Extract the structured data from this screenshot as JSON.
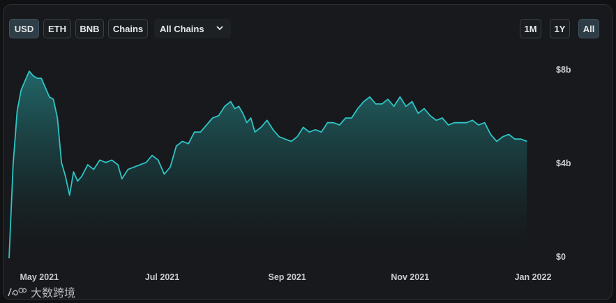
{
  "toolbar": {
    "currency_buttons": [
      {
        "label": "USD",
        "active": true
      },
      {
        "label": "ETH",
        "active": false
      },
      {
        "label": "BNB",
        "active": false
      },
      {
        "label": "Chains",
        "active": false
      }
    ],
    "chain_select": {
      "selected": "All Chains"
    },
    "range_buttons": [
      {
        "label": "1M",
        "active": false
      },
      {
        "label": "1Y",
        "active": false
      },
      {
        "label": "All",
        "active": true
      }
    ]
  },
  "colors": {
    "line": "#2ec4c4",
    "background": "#17191c",
    "accent_active": "#2e3d46"
  },
  "watermark": {
    "text": "大数跨境"
  },
  "chart_data": {
    "type": "area",
    "title": "",
    "xlabel": "",
    "ylabel": "",
    "ylim": [
      0,
      8.2
    ],
    "y_ticks": [
      {
        "value": 0,
        "label": "$0"
      },
      {
        "value": 4,
        "label": "$4b"
      },
      {
        "value": 8,
        "label": "$8b"
      }
    ],
    "x_ticks": [
      {
        "date": "2021-05-01",
        "label": "May 2021"
      },
      {
        "date": "2021-07-01",
        "label": "Jul 2021"
      },
      {
        "date": "2021-09-01",
        "label": "Sep 2021"
      },
      {
        "date": "2021-11-01",
        "label": "Nov 2021"
      },
      {
        "date": "2022-01-01",
        "label": "Jan 2022"
      }
    ],
    "x_range": [
      "2021-04-16",
      "2022-01-10"
    ],
    "series": [
      {
        "values": [
          [
            "2021-04-16",
            0.0
          ],
          [
            "2021-04-18",
            4.0
          ],
          [
            "2021-04-20",
            6.3
          ],
          [
            "2021-04-22",
            7.2
          ],
          [
            "2021-04-24",
            7.6
          ],
          [
            "2021-04-26",
            8.0
          ],
          [
            "2021-04-28",
            7.8
          ],
          [
            "2021-04-30",
            7.7
          ],
          [
            "2021-05-02",
            7.7
          ],
          [
            "2021-05-04",
            7.3
          ],
          [
            "2021-05-06",
            6.9
          ],
          [
            "2021-05-08",
            6.8
          ],
          [
            "2021-05-10",
            6.0
          ],
          [
            "2021-05-12",
            4.1
          ],
          [
            "2021-05-14",
            3.5
          ],
          [
            "2021-05-16",
            2.7
          ],
          [
            "2021-05-18",
            3.7
          ],
          [
            "2021-05-20",
            3.3
          ],
          [
            "2021-05-22",
            3.5
          ],
          [
            "2021-05-25",
            4.0
          ],
          [
            "2021-05-28",
            3.8
          ],
          [
            "2021-05-31",
            4.2
          ],
          [
            "2021-06-03",
            4.1
          ],
          [
            "2021-06-06",
            4.2
          ],
          [
            "2021-06-09",
            4.0
          ],
          [
            "2021-06-11",
            3.4
          ],
          [
            "2021-06-14",
            3.8
          ],
          [
            "2021-06-17",
            3.9
          ],
          [
            "2021-06-20",
            4.0
          ],
          [
            "2021-06-23",
            4.1
          ],
          [
            "2021-06-26",
            4.4
          ],
          [
            "2021-06-29",
            4.2
          ],
          [
            "2021-07-02",
            3.6
          ],
          [
            "2021-07-05",
            3.9
          ],
          [
            "2021-07-08",
            4.8
          ],
          [
            "2021-07-11",
            5.0
          ],
          [
            "2021-07-14",
            4.9
          ],
          [
            "2021-07-17",
            5.4
          ],
          [
            "2021-07-20",
            5.4
          ],
          [
            "2021-07-23",
            5.7
          ],
          [
            "2021-07-26",
            6.0
          ],
          [
            "2021-07-29",
            6.1
          ],
          [
            "2021-08-01",
            6.5
          ],
          [
            "2021-08-04",
            6.7
          ],
          [
            "2021-08-06",
            6.4
          ],
          [
            "2021-08-08",
            6.5
          ],
          [
            "2021-08-10",
            6.2
          ],
          [
            "2021-08-12",
            5.8
          ],
          [
            "2021-08-14",
            6.0
          ],
          [
            "2021-08-16",
            5.4
          ],
          [
            "2021-08-19",
            5.6
          ],
          [
            "2021-08-22",
            5.9
          ],
          [
            "2021-08-25",
            5.5
          ],
          [
            "2021-08-28",
            5.2
          ],
          [
            "2021-08-31",
            5.1
          ],
          [
            "2021-09-03",
            5.0
          ],
          [
            "2021-09-06",
            5.2
          ],
          [
            "2021-09-09",
            5.6
          ],
          [
            "2021-09-12",
            5.4
          ],
          [
            "2021-09-15",
            5.5
          ],
          [
            "2021-09-18",
            5.4
          ],
          [
            "2021-09-21",
            5.8
          ],
          [
            "2021-09-24",
            5.8
          ],
          [
            "2021-09-27",
            5.7
          ],
          [
            "2021-09-30",
            6.0
          ],
          [
            "2021-10-03",
            6.0
          ],
          [
            "2021-10-06",
            6.4
          ],
          [
            "2021-10-09",
            6.7
          ],
          [
            "2021-10-12",
            6.9
          ],
          [
            "2021-10-15",
            6.6
          ],
          [
            "2021-10-18",
            6.6
          ],
          [
            "2021-10-21",
            6.8
          ],
          [
            "2021-10-24",
            6.5
          ],
          [
            "2021-10-27",
            6.9
          ],
          [
            "2021-10-30",
            6.5
          ],
          [
            "2021-11-02",
            6.7
          ],
          [
            "2021-11-05",
            6.2
          ],
          [
            "2021-11-08",
            6.4
          ],
          [
            "2021-11-11",
            6.1
          ],
          [
            "2021-11-14",
            5.9
          ],
          [
            "2021-11-17",
            6.0
          ],
          [
            "2021-11-20",
            5.7
          ],
          [
            "2021-11-23",
            5.8
          ],
          [
            "2021-11-26",
            5.8
          ],
          [
            "2021-11-29",
            5.8
          ],
          [
            "2021-12-02",
            5.9
          ],
          [
            "2021-12-05",
            5.7
          ],
          [
            "2021-12-08",
            5.8
          ],
          [
            "2021-12-11",
            5.3
          ],
          [
            "2021-12-14",
            5.0
          ],
          [
            "2021-12-17",
            5.2
          ],
          [
            "2021-12-20",
            5.3
          ],
          [
            "2021-12-23",
            5.1
          ],
          [
            "2021-12-26",
            5.1
          ],
          [
            "2021-12-29",
            5.0
          ]
        ]
      }
    ],
    "grid": false,
    "legend": "none"
  }
}
